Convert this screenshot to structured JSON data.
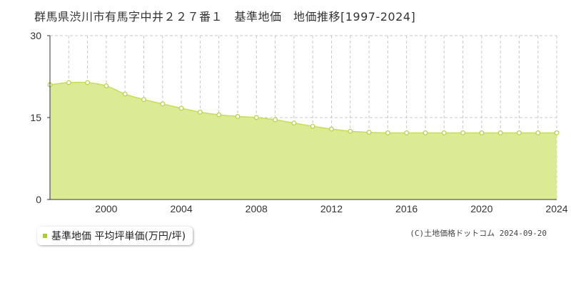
{
  "title": "群馬県渋川市有馬字中井２２７番１　基準地価　地価推移[1997-2024]",
  "legend": {
    "label": "基準地価 平均坪単価(万円/坪)",
    "color": "#a8cc33"
  },
  "copyright": "(C)土地価格ドットコム 2024-09-20",
  "colors": {
    "fill": "#dbeb94",
    "line": "#c5dd5a",
    "marker_fill": "#ffffff",
    "marker_stroke": "#b8d44a",
    "grid": "#c8c8c8"
  },
  "chart_data": {
    "type": "area",
    "x": [
      1997,
      1998,
      1999,
      2000,
      2001,
      2002,
      2003,
      2004,
      2005,
      2006,
      2007,
      2008,
      2009,
      2010,
      2011,
      2012,
      2013,
      2014,
      2015,
      2016,
      2017,
      2018,
      2019,
      2020,
      2021,
      2022,
      2023,
      2024
    ],
    "series": [
      {
        "values": [
          21.0,
          21.4,
          21.4,
          20.8,
          19.3,
          18.3,
          17.5,
          16.7,
          16.0,
          15.5,
          15.2,
          15.0,
          14.6,
          14.0,
          13.4,
          12.9,
          12.5,
          12.3,
          12.2,
          12.2,
          12.2,
          12.2,
          12.2,
          12.2,
          12.2,
          12.2,
          12.2,
          12.2
        ]
      }
    ],
    "xlim": [
      1997,
      2024
    ],
    "ylim": [
      0,
      30
    ],
    "y_ticks": [
      0,
      15,
      30
    ],
    "x_ticks": [
      2000,
      2004,
      2008,
      2012,
      2016,
      2020,
      2024
    ],
    "grid": true
  }
}
